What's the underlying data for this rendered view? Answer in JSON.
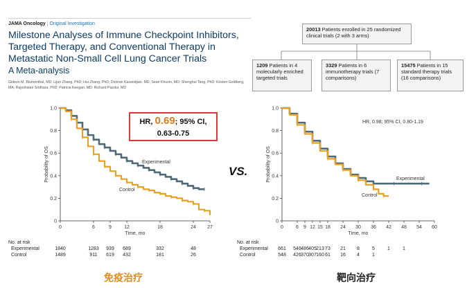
{
  "header": {
    "journal": "JAMA Oncology",
    "separator": "|",
    "type": "Original Investigation",
    "title": "Milestone Analyses of Immune Checkpoint Inhibitors, Targeted Therapy, and Conventional Therapy in Metastatic Non-Small Cell Lung Cancer Trials",
    "subtitle": "A Meta-analysis",
    "authors": "Gideon M. Blumenthal, MD; Lijun Zhang, PhD; Hui Zhang, PhD; Dickran Kazandjian, MD; Sean Khozin, MD; Shenghui Tang, PhD; Kirsten Goldberg, MA; Rajeshwari Sridhara, PhD; Patricia Keegan, MD; Richard Pazdur, MD"
  },
  "flow": {
    "top": {
      "count": "20013",
      "text": "Patients enrolled in 25 randomized clinical trials (2 with 3 arms)"
    },
    "boxes": [
      {
        "count": "1209",
        "text": "Patients in 4 molecularly enriched targeted trials"
      },
      {
        "count": "3329",
        "text": "Patients in 6 immunotherapy trials (7 comparisons)"
      },
      {
        "count": "15475",
        "text": "Patients in 15 standard therapy trials (16 comparisons)"
      }
    ]
  },
  "vs_label": "VS.",
  "colors": {
    "experimental": "#4e6a78",
    "control": "#e8a020",
    "hr_border": "#d93a3a",
    "hr_value": "#e07b20",
    "cap_left": "#e08a1e",
    "cap_right": "#222222"
  },
  "chart_data": [
    {
      "type": "line",
      "title": "",
      "xlabel": "Time, mo",
      "ylabel": "Probability of OS",
      "xlim": [
        0,
        27
      ],
      "ylim": [
        0,
        1.0
      ],
      "xticks": [
        0,
        6,
        9,
        12,
        18,
        24,
        27
      ],
      "yticks": [
        0,
        0.2,
        0.4,
        0.6,
        0.8,
        1.0
      ],
      "ytick_labels": [
        "0",
        "0.2",
        "0.4",
        "0.6",
        "0.8",
        "1.0"
      ],
      "hr_text": {
        "prefix": "HR, ",
        "value": "0.69",
        "suffix": "; 95% CI,",
        "ci": "0.63-0.75"
      },
      "series": [
        {
          "name": "Experimental",
          "x": [
            0,
            1,
            2,
            3,
            4,
            5,
            6,
            7,
            8,
            9,
            10,
            11,
            12,
            13,
            14,
            15,
            16,
            17,
            18,
            19,
            20,
            21,
            22,
            23,
            24,
            25,
            26
          ],
          "y": [
            1.0,
            0.98,
            0.93,
            0.87,
            0.81,
            0.76,
            0.72,
            0.68,
            0.65,
            0.62,
            0.59,
            0.56,
            0.53,
            0.51,
            0.49,
            0.47,
            0.45,
            0.43,
            0.41,
            0.39,
            0.37,
            0.35,
            0.33,
            0.31,
            0.29,
            0.28,
            0.28
          ]
        },
        {
          "name": "Control",
          "x": [
            0,
            1,
            2,
            3,
            4,
            5,
            6,
            7,
            8,
            9,
            10,
            11,
            12,
            13,
            14,
            15,
            16,
            17,
            18,
            19,
            20,
            21,
            22,
            23,
            24,
            25,
            26,
            27
          ],
          "y": [
            1.0,
            0.97,
            0.9,
            0.82,
            0.74,
            0.66,
            0.59,
            0.53,
            0.48,
            0.44,
            0.4,
            0.37,
            0.34,
            0.32,
            0.3,
            0.28,
            0.27,
            0.25,
            0.24,
            0.22,
            0.21,
            0.2,
            0.18,
            0.17,
            0.15,
            0.1,
            0.09,
            0.05
          ]
        }
      ],
      "at_risk": {
        "title": "No. at risk",
        "times": [
          0,
          6,
          9,
          12,
          18,
          24
        ],
        "rows": [
          {
            "label": "Experimental",
            "values": [
              "1840",
              "1283",
              "939",
              "689",
              "332",
              "48"
            ]
          },
          {
            "label": "Control",
            "values": [
              "1489",
              "911",
              "619",
              "432",
              "181",
              "26"
            ]
          }
        ]
      },
      "caption": "免疫治疗"
    },
    {
      "type": "line",
      "title": "",
      "xlabel": "Time, mo",
      "ylabel": "Probability of OS",
      "xlim": [
        0,
        60
      ],
      "ylim": [
        0,
        1.0
      ],
      "xticks": [
        0,
        6,
        9,
        12,
        15,
        18,
        24,
        30,
        36,
        42,
        48,
        54,
        60
      ],
      "yticks": [
        0,
        0.2,
        0.4,
        0.6,
        0.8,
        1.0
      ],
      "ytick_labels": [
        "0",
        "0.2",
        "0.4",
        "0.6",
        "0.8",
        "1.0"
      ],
      "hr_text": "HR, 0.98; 95% CI, 0.80-1.19",
      "series": [
        {
          "name": "Experimental",
          "x": [
            0,
            3,
            6,
            9,
            12,
            15,
            18,
            21,
            24,
            27,
            30,
            33,
            36,
            40,
            44,
            50,
            55,
            58
          ],
          "y": [
            1.0,
            0.95,
            0.87,
            0.79,
            0.71,
            0.64,
            0.57,
            0.51,
            0.46,
            0.41,
            0.38,
            0.35,
            0.33,
            0.33,
            0.33,
            0.33,
            0.33,
            0.33
          ]
        },
        {
          "name": "Control",
          "x": [
            0,
            3,
            6,
            9,
            12,
            15,
            18,
            21,
            24,
            27,
            30,
            33,
            36,
            38,
            40,
            42
          ],
          "y": [
            1.0,
            0.94,
            0.85,
            0.77,
            0.69,
            0.62,
            0.55,
            0.5,
            0.45,
            0.4,
            0.36,
            0.32,
            0.28,
            0.24,
            0.22,
            0.22
          ]
        }
      ],
      "at_risk": {
        "title": "No. at risk",
        "times": [
          0,
          6,
          9,
          12,
          15,
          18,
          24,
          30,
          36,
          42,
          48,
          54
        ],
        "rows": [
          {
            "label": "Experimental",
            "values": [
              "661",
              "546",
              "486",
              "405",
              "213",
              "73",
              "21",
              "8",
              "5",
              "1",
              "1",
              ""
            ]
          },
          {
            "label": "Control",
            "values": [
              "548",
              "426",
              "370",
              "307",
              "160",
              "61",
              "16",
              "4",
              "1",
              "",
              "",
              ""
            ]
          }
        ]
      },
      "caption": "靶向治疗"
    }
  ]
}
